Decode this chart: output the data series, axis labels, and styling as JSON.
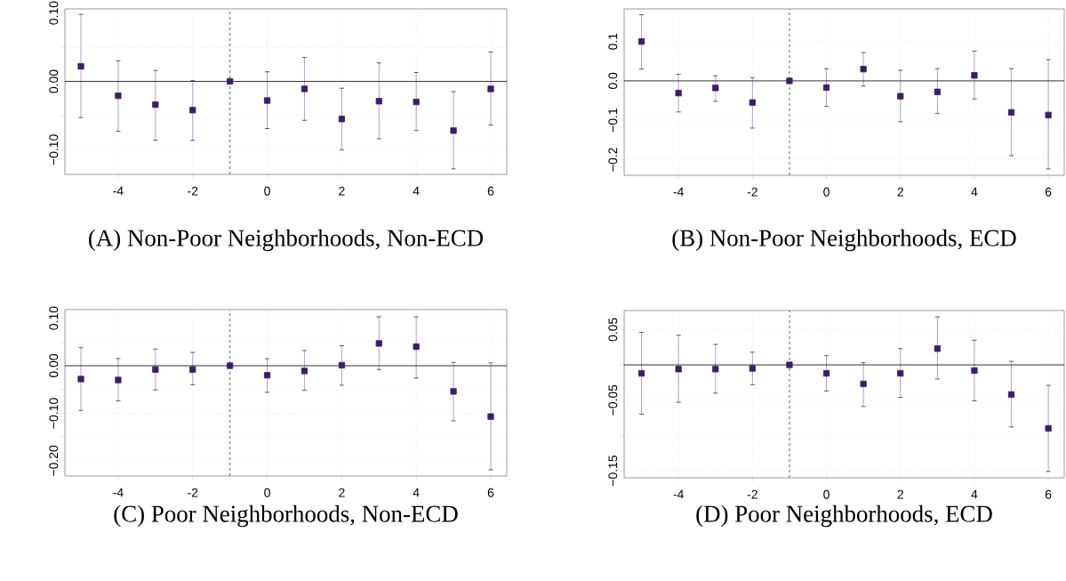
{
  "chart_data": [
    {
      "type": "scatter",
      "title": "(A) Non-Poor Neighborhoods, Non-ECD",
      "marker": "square",
      "grid": true,
      "color": "#3b1f63",
      "xlim": [
        -5.43,
        6.43
      ],
      "ylim": [
        -0.136,
        0.106
      ],
      "xticks": [
        -4,
        -2,
        0,
        2,
        4,
        6
      ],
      "yticks": [
        {
          "value": -0.1,
          "label": "−0.10"
        },
        {
          "value": -0.05,
          "label": null
        },
        {
          "value": 0,
          "label": "0.00"
        },
        {
          "value": 0.05,
          "label": null
        },
        {
          "value": 0.1,
          "label": "0.10"
        }
      ],
      "ref_lines": [
        {
          "axis": "y",
          "value": 0,
          "color": "#000000",
          "line_style": "solid"
        },
        {
          "axis": "x",
          "value": -1,
          "color": "#404040",
          "line_style": "dashed"
        }
      ],
      "x": [
        -5,
        -4,
        -3,
        -2,
        -1,
        0,
        1,
        2,
        3,
        4,
        5,
        6
      ],
      "values": [
        0.022,
        -0.021,
        -0.034,
        -0.042,
        0,
        -0.028,
        -0.011,
        -0.055,
        -0.029,
        -0.03,
        -0.072,
        -0.011
      ],
      "errors": [
        [
          -0.053,
          0.098
        ],
        [
          -0.073,
          0.03
        ],
        [
          -0.086,
          0.016
        ],
        [
          -0.086,
          0.001
        ],
        null,
        [
          -0.069,
          0.014
        ],
        [
          -0.057,
          0.035
        ],
        [
          -0.1,
          -0.01
        ],
        [
          -0.084,
          0.027
        ],
        [
          -0.072,
          0.013
        ],
        [
          -0.128,
          -0.015
        ],
        [
          -0.064,
          0.043
        ]
      ]
    },
    {
      "type": "scatter",
      "title": "(B) Non-Poor Neighborhoods, ECD",
      "marker": "square",
      "grid": true,
      "color": "#3b1f63",
      "xlim": [
        -5.47,
        6.43
      ],
      "ylim": [
        -0.24,
        0.183
      ],
      "xticks": [
        -4,
        -2,
        0,
        2,
        4,
        6
      ],
      "yticks": [
        {
          "value": -0.2,
          "label": "−0.2"
        },
        {
          "value": -0.1,
          "label": "−0.1"
        },
        {
          "value": 0,
          "label": "0.0"
        },
        0.1
      ],
      "ref_lines": [
        {
          "axis": "y",
          "value": 0,
          "color": "#000000",
          "line_style": "solid"
        },
        {
          "axis": "x",
          "value": -1,
          "color": "#404040",
          "line_style": "dashed"
        }
      ],
      "x": [
        -5,
        -4,
        -3,
        -2,
        -1,
        0,
        1,
        2,
        3,
        4,
        5,
        6
      ],
      "values": [
        0.1,
        -0.031,
        -0.018,
        -0.055,
        0,
        -0.017,
        0.03,
        -0.039,
        -0.028,
        0.014,
        -0.08,
        -0.087
      ],
      "errors": [
        [
          0.03,
          0.168
        ],
        [
          -0.079,
          0.017
        ],
        [
          -0.052,
          0.013
        ],
        [
          -0.12,
          0.008
        ],
        null,
        [
          -0.065,
          0.031
        ],
        [
          -0.013,
          0.072
        ],
        [
          -0.104,
          0.027
        ],
        [
          -0.083,
          0.031
        ],
        [
          -0.046,
          0.076
        ],
        [
          -0.19,
          0.031
        ],
        [
          -0.224,
          0.054
        ]
      ]
    },
    {
      "type": "scatter",
      "title": "(C) Poor Neighborhoods, Non-ECD",
      "marker": "square",
      "grid": true,
      "color": "#3b1f63",
      "xlim": [
        -5.43,
        6.43
      ],
      "ylim": [
        -0.232,
        0.118
      ],
      "xticks": [
        -4,
        -2,
        0,
        2,
        4,
        6
      ],
      "yticks": [
        {
          "value": -0.2,
          "label": "−0.20"
        },
        {
          "value": -0.15,
          "label": null
        },
        {
          "value": -0.1,
          "label": "−0.10"
        },
        {
          "value": -0.05,
          "label": null
        },
        {
          "value": 0,
          "label": "0.00"
        },
        {
          "value": 0.05,
          "label": null
        },
        {
          "value": 0.1,
          "label": "0.10"
        }
      ],
      "ref_lines": [
        {
          "axis": "y",
          "value": 0,
          "color": "#000000",
          "line_style": "solid"
        },
        {
          "axis": "x",
          "value": -1,
          "color": "#404040",
          "line_style": "dashed"
        }
      ],
      "x": [
        -5,
        -4,
        -3,
        -2,
        -1,
        0,
        1,
        2,
        3,
        4,
        5,
        6
      ],
      "values": [
        -0.028,
        -0.03,
        -0.008,
        -0.008,
        0,
        -0.02,
        -0.011,
        0.001,
        0.047,
        0.04,
        -0.054,
        -0.107
      ],
      "errors": [
        [
          -0.094,
          0.038
        ],
        [
          -0.074,
          0.015
        ],
        [
          -0.051,
          0.035
        ],
        [
          -0.04,
          0.028
        ],
        null,
        [
          -0.056,
          0.015
        ],
        [
          -0.052,
          0.032
        ],
        [
          -0.041,
          0.042
        ],
        [
          -0.008,
          0.103
        ],
        [
          -0.026,
          0.103
        ],
        [
          -0.116,
          0.007
        ],
        [
          -0.219,
          0.006
        ]
      ]
    },
    {
      "type": "scatter",
      "title": "(D) Poor Neighborhoods, ECD",
      "marker": "square",
      "grid": true,
      "color": "#3b1f63",
      "xlim": [
        -5.47,
        6.43
      ],
      "ylim": [
        -0.16,
        0.077
      ],
      "xticks": [
        -4,
        -2,
        0,
        2,
        4,
        6
      ],
      "yticks": [
        {
          "value": -0.15,
          "label": "−0.15"
        },
        {
          "value": -0.1,
          "label": null
        },
        {
          "value": -0.05,
          "label": "−0.05"
        },
        {
          "value": 0,
          "label": null
        },
        {
          "value": 0.05,
          "label": "0.05"
        }
      ],
      "ref_lines": [
        {
          "axis": "y",
          "value": 0,
          "color": "#000000",
          "line_style": "solid"
        },
        {
          "axis": "x",
          "value": -1,
          "color": "#404040",
          "line_style": "dashed"
        }
      ],
      "x": [
        -5,
        -4,
        -3,
        -2,
        -1,
        0,
        1,
        2,
        3,
        4,
        5,
        6
      ],
      "values": [
        -0.012,
        -0.006,
        -0.006,
        -0.005,
        0,
        -0.012,
        -0.027,
        -0.012,
        0.023,
        -0.008,
        -0.042,
        -0.09
      ],
      "errors": [
        [
          -0.07,
          0.046
        ],
        [
          -0.053,
          0.042
        ],
        [
          -0.04,
          0.029
        ],
        [
          -0.028,
          0.018
        ],
        null,
        [
          -0.037,
          0.013
        ],
        [
          -0.059,
          0.003
        ],
        [
          -0.046,
          0.023
        ],
        [
          -0.02,
          0.068
        ],
        [
          -0.051,
          0.035
        ],
        [
          -0.088,
          0.005
        ],
        [
          -0.151,
          -0.029
        ]
      ]
    }
  ]
}
